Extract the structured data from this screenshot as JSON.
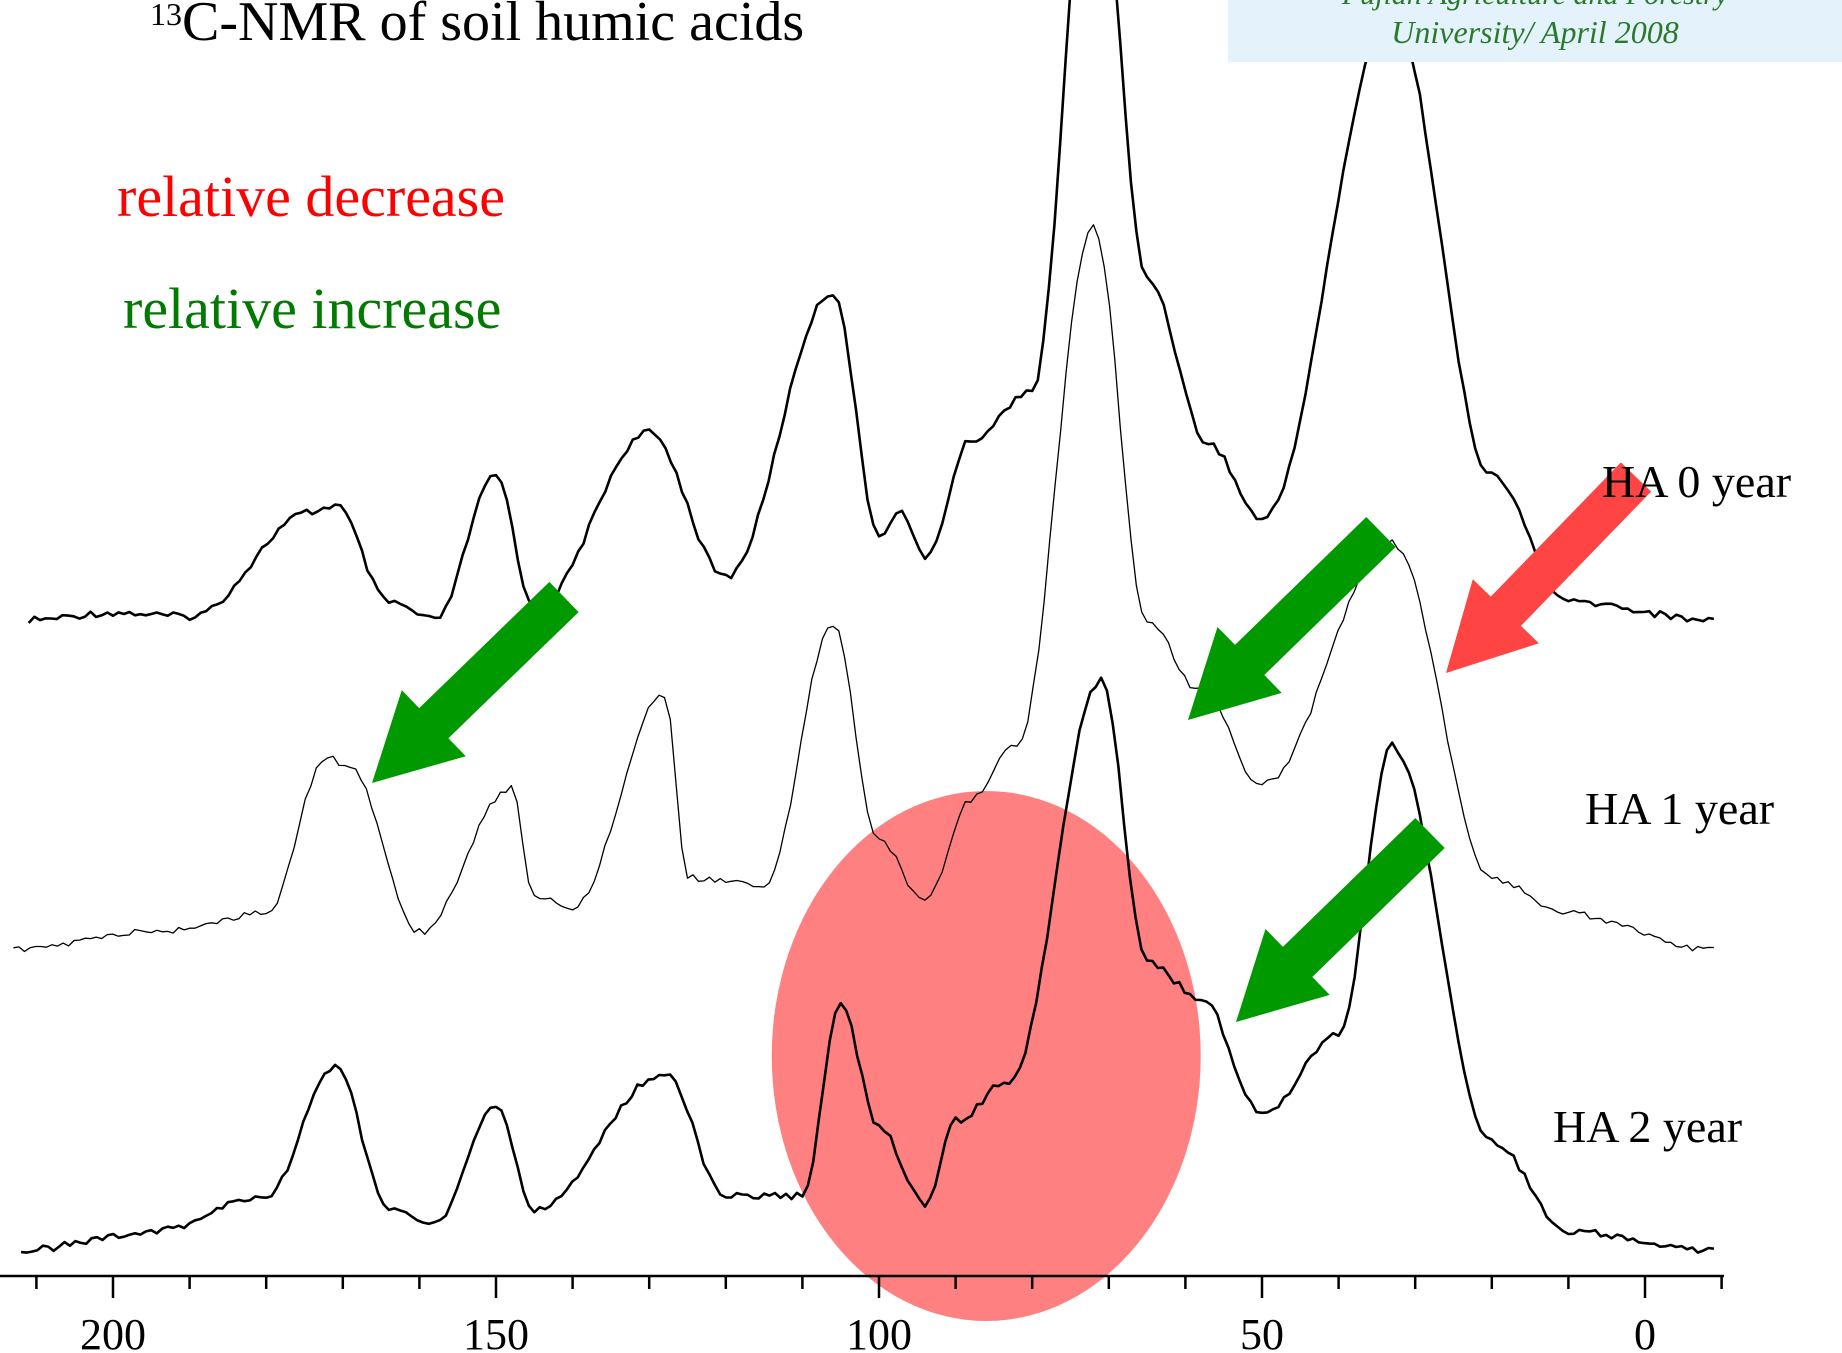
{
  "slide": {
    "title_super": "13",
    "title_main": "C-NMR of soil humic acids",
    "credit_line1": "Fujian Agriculture and Forestry",
    "credit_line2": "University/ April 2008"
  },
  "legend": {
    "decrease_label": "relative decrease",
    "increase_label": "relative increase",
    "decrease_color": "#ff0000",
    "increase_color": "#007a00"
  },
  "colors": {
    "arrow_green": "#009900",
    "arrow_red": "#ff4444",
    "ellipse_fill": "#ff8080",
    "spectrum_line": "#000000"
  },
  "chart_data": {
    "type": "line",
    "title": "13C-NMR of soil humic acids",
    "xlabel": "",
    "ylabel": "",
    "x_reversed": true,
    "xlim": [
      212,
      -10
    ],
    "x_ticks": [
      200,
      150,
      100,
      50,
      0
    ],
    "x_tick_labels": [
      "200",
      "150",
      "100",
      "50",
      "0"
    ],
    "x_minor_step": 10,
    "grid": false,
    "series": [
      {
        "name": "HA 0 year",
        "peaks": [
          {
            "x": 211,
            "y": 0.0
          },
          {
            "x": 200,
            "y": 0.02
          },
          {
            "x": 190,
            "y": 0.01
          },
          {
            "x": 174,
            "y": 0.3
          },
          {
            "x": 171,
            "y": 0.32
          },
          {
            "x": 164,
            "y": 0.05
          },
          {
            "x": 158,
            "y": 0.0
          },
          {
            "x": 150,
            "y": 0.4
          },
          {
            "x": 145,
            "y": 0.03
          },
          {
            "x": 130,
            "y": 0.52
          },
          {
            "x": 120,
            "y": 0.12
          },
          {
            "x": 106,
            "y": 0.91
          },
          {
            "x": 100,
            "y": 0.24
          },
          {
            "x": 97,
            "y": 0.3
          },
          {
            "x": 94,
            "y": 0.17
          },
          {
            "x": 88,
            "y": 0.5
          },
          {
            "x": 80,
            "y": 0.64
          },
          {
            "x": 72,
            "y": 2.24
          },
          {
            "x": 65,
            "y": 0.95
          },
          {
            "x": 57,
            "y": 0.49
          },
          {
            "x": 50,
            "y": 0.28
          },
          {
            "x": 33,
            "y": 1.68
          },
          {
            "x": 20,
            "y": 0.4
          },
          {
            "x": 10,
            "y": 0.05
          },
          {
            "x": -9,
            "y": 0.0
          }
        ]
      },
      {
        "name": "HA 1 year",
        "peaks": [
          {
            "x": 213,
            "y": 0.0
          },
          {
            "x": 195,
            "y": 0.05
          },
          {
            "x": 180,
            "y": 0.1
          },
          {
            "x": 172,
            "y": 0.54
          },
          {
            "x": 169,
            "y": 0.5
          },
          {
            "x": 160,
            "y": 0.05
          },
          {
            "x": 148,
            "y": 0.45
          },
          {
            "x": 145,
            "y": 0.15
          },
          {
            "x": 140,
            "y": 0.12
          },
          {
            "x": 128,
            "y": 0.71
          },
          {
            "x": 125,
            "y": 0.2
          },
          {
            "x": 115,
            "y": 0.18
          },
          {
            "x": 106,
            "y": 0.9
          },
          {
            "x": 100,
            "y": 0.3
          },
          {
            "x": 94,
            "y": 0.14
          },
          {
            "x": 88,
            "y": 0.42
          },
          {
            "x": 82,
            "y": 0.57
          },
          {
            "x": 72,
            "y": 2.01
          },
          {
            "x": 65,
            "y": 0.91
          },
          {
            "x": 58,
            "y": 0.72
          },
          {
            "x": 50,
            "y": 0.46
          },
          {
            "x": 33,
            "y": 1.13
          },
          {
            "x": 20,
            "y": 0.2
          },
          {
            "x": 10,
            "y": 0.1
          },
          {
            "x": -9,
            "y": 0.0
          }
        ]
      },
      {
        "name": "HA 2 year",
        "peaks": [
          {
            "x": 212,
            "y": 0.0
          },
          {
            "x": 195,
            "y": 0.05
          },
          {
            "x": 180,
            "y": 0.15
          },
          {
            "x": 171,
            "y": 0.51
          },
          {
            "x": 164,
            "y": 0.12
          },
          {
            "x": 158,
            "y": 0.07
          },
          {
            "x": 150,
            "y": 0.4
          },
          {
            "x": 145,
            "y": 0.11
          },
          {
            "x": 128,
            "y": 0.49
          },
          {
            "x": 120,
            "y": 0.15
          },
          {
            "x": 110,
            "y": 0.15
          },
          {
            "x": 105,
            "y": 0.68
          },
          {
            "x": 100,
            "y": 0.34
          },
          {
            "x": 94,
            "y": 0.13
          },
          {
            "x": 90,
            "y": 0.36
          },
          {
            "x": 83,
            "y": 0.47
          },
          {
            "x": 71,
            "y": 1.58
          },
          {
            "x": 65,
            "y": 0.8
          },
          {
            "x": 58,
            "y": 0.7
          },
          {
            "x": 50,
            "y": 0.38
          },
          {
            "x": 40,
            "y": 0.6
          },
          {
            "x": 33,
            "y": 1.4
          },
          {
            "x": 20,
            "y": 0.3
          },
          {
            "x": 10,
            "y": 0.05
          },
          {
            "x": -9,
            "y": 0.0
          }
        ]
      }
    ],
    "annotations": [
      {
        "type": "arrow",
        "color": "green",
        "meaning": "relative increase",
        "from": [
          140,
          0.7
        ],
        "to": [
          166,
          0.35
        ],
        "series": "HA 1 year"
      },
      {
        "type": "arrow",
        "color": "green",
        "meaning": "relative increase",
        "from": [
          38,
          1.0
        ],
        "to": [
          60,
          0.6
        ],
        "series": "HA 1 year"
      },
      {
        "type": "arrow",
        "color": "red",
        "meaning": "relative decrease",
        "from": [
          15,
          1.05
        ],
        "to": [
          26,
          0.8
        ],
        "series": "HA 1 year"
      },
      {
        "type": "arrow",
        "color": "green",
        "meaning": "relative increase",
        "from": [
          26,
          1.05
        ],
        "to": [
          54,
          0.6
        ],
        "series": "HA 2 year"
      },
      {
        "type": "ellipse",
        "color": "red",
        "meaning": "relative decrease",
        "center": [
          86,
          1.0
        ],
        "x_range": [
          115,
          59
        ]
      }
    ]
  }
}
